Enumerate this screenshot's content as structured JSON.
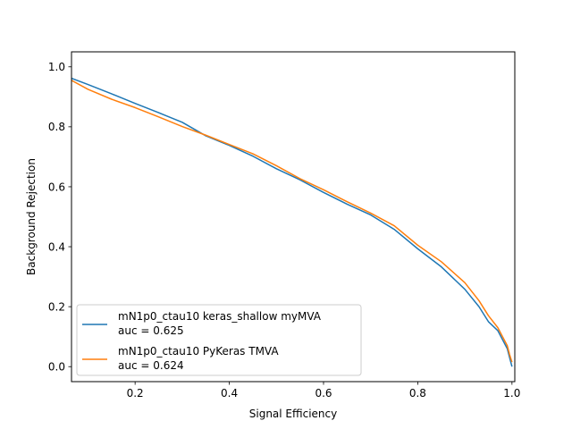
{
  "chart_data": {
    "type": "line",
    "title": "",
    "xlabel": "Signal Efficiency",
    "ylabel": "Background Rejection",
    "xlim": [
      0.065,
      1.006
    ],
    "ylim": [
      -0.05,
      1.05
    ],
    "xticks": [
      0.2,
      0.4,
      0.6,
      0.8,
      1.0
    ],
    "xtick_labels": [
      "0.2",
      "0.4",
      "0.6",
      "0.8",
      "1.0"
    ],
    "yticks": [
      0.0,
      0.2,
      0.4,
      0.6,
      0.8,
      1.0
    ],
    "ytick_labels": [
      "0.0",
      "0.2",
      "0.4",
      "0.6",
      "0.8",
      "1.0"
    ],
    "grid": false,
    "legend_position": "lower-left",
    "series": [
      {
        "name": "mN1p0_ctau10 keras_shallow myMVA",
        "auc_label": "auc = 0.625",
        "color": "#1f77b4",
        "x": [
          0.065,
          0.1,
          0.15,
          0.2,
          0.25,
          0.3,
          0.35,
          0.4,
          0.45,
          0.5,
          0.55,
          0.6,
          0.65,
          0.7,
          0.75,
          0.8,
          0.85,
          0.9,
          0.93,
          0.95,
          0.97,
          0.98,
          0.99,
          0.995,
          1.0
        ],
        "y": [
          0.962,
          0.941,
          0.91,
          0.878,
          0.847,
          0.815,
          0.77,
          0.738,
          0.702,
          0.66,
          0.623,
          0.581,
          0.542,
          0.506,
          0.458,
          0.393,
          0.333,
          0.258,
          0.2,
          0.15,
          0.12,
          0.09,
          0.06,
          0.03,
          0.0
        ]
      },
      {
        "name": "mN1p0_ctau10 PyKeras TMVA",
        "auc_label": "auc = 0.624",
        "color": "#ff7f0e",
        "x": [
          0.065,
          0.1,
          0.15,
          0.2,
          0.25,
          0.3,
          0.35,
          0.4,
          0.45,
          0.5,
          0.55,
          0.6,
          0.65,
          0.7,
          0.75,
          0.8,
          0.85,
          0.9,
          0.93,
          0.95,
          0.97,
          0.98,
          0.99,
          0.995,
          1.0
        ],
        "y": [
          0.955,
          0.925,
          0.892,
          0.864,
          0.833,
          0.801,
          0.772,
          0.741,
          0.71,
          0.67,
          0.627,
          0.59,
          0.55,
          0.512,
          0.47,
          0.405,
          0.35,
          0.28,
          0.22,
          0.17,
          0.13,
          0.1,
          0.07,
          0.04,
          0.015
        ]
      }
    ]
  }
}
